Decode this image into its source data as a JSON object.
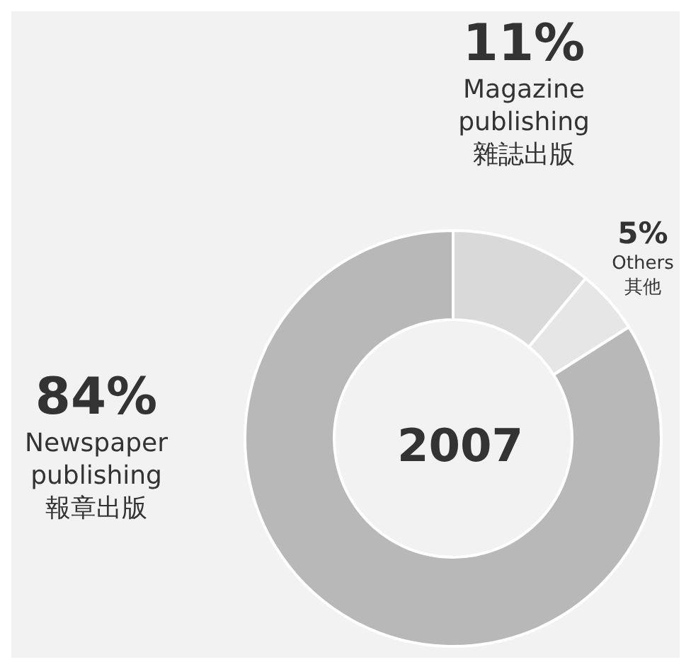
{
  "chart_data": {
    "type": "donut",
    "title": "2007",
    "categories": [
      "Magazine publishing 雜誌出版",
      "Others 其他",
      "Newspaper publishing 報章出版"
    ],
    "values": [
      11,
      5,
      84
    ],
    "colors": [
      "#d9d9d9",
      "#e6e6e6",
      "#b8b8b8"
    ],
    "value_labels": [
      "11%",
      "5%",
      "84%"
    ]
  }
}
